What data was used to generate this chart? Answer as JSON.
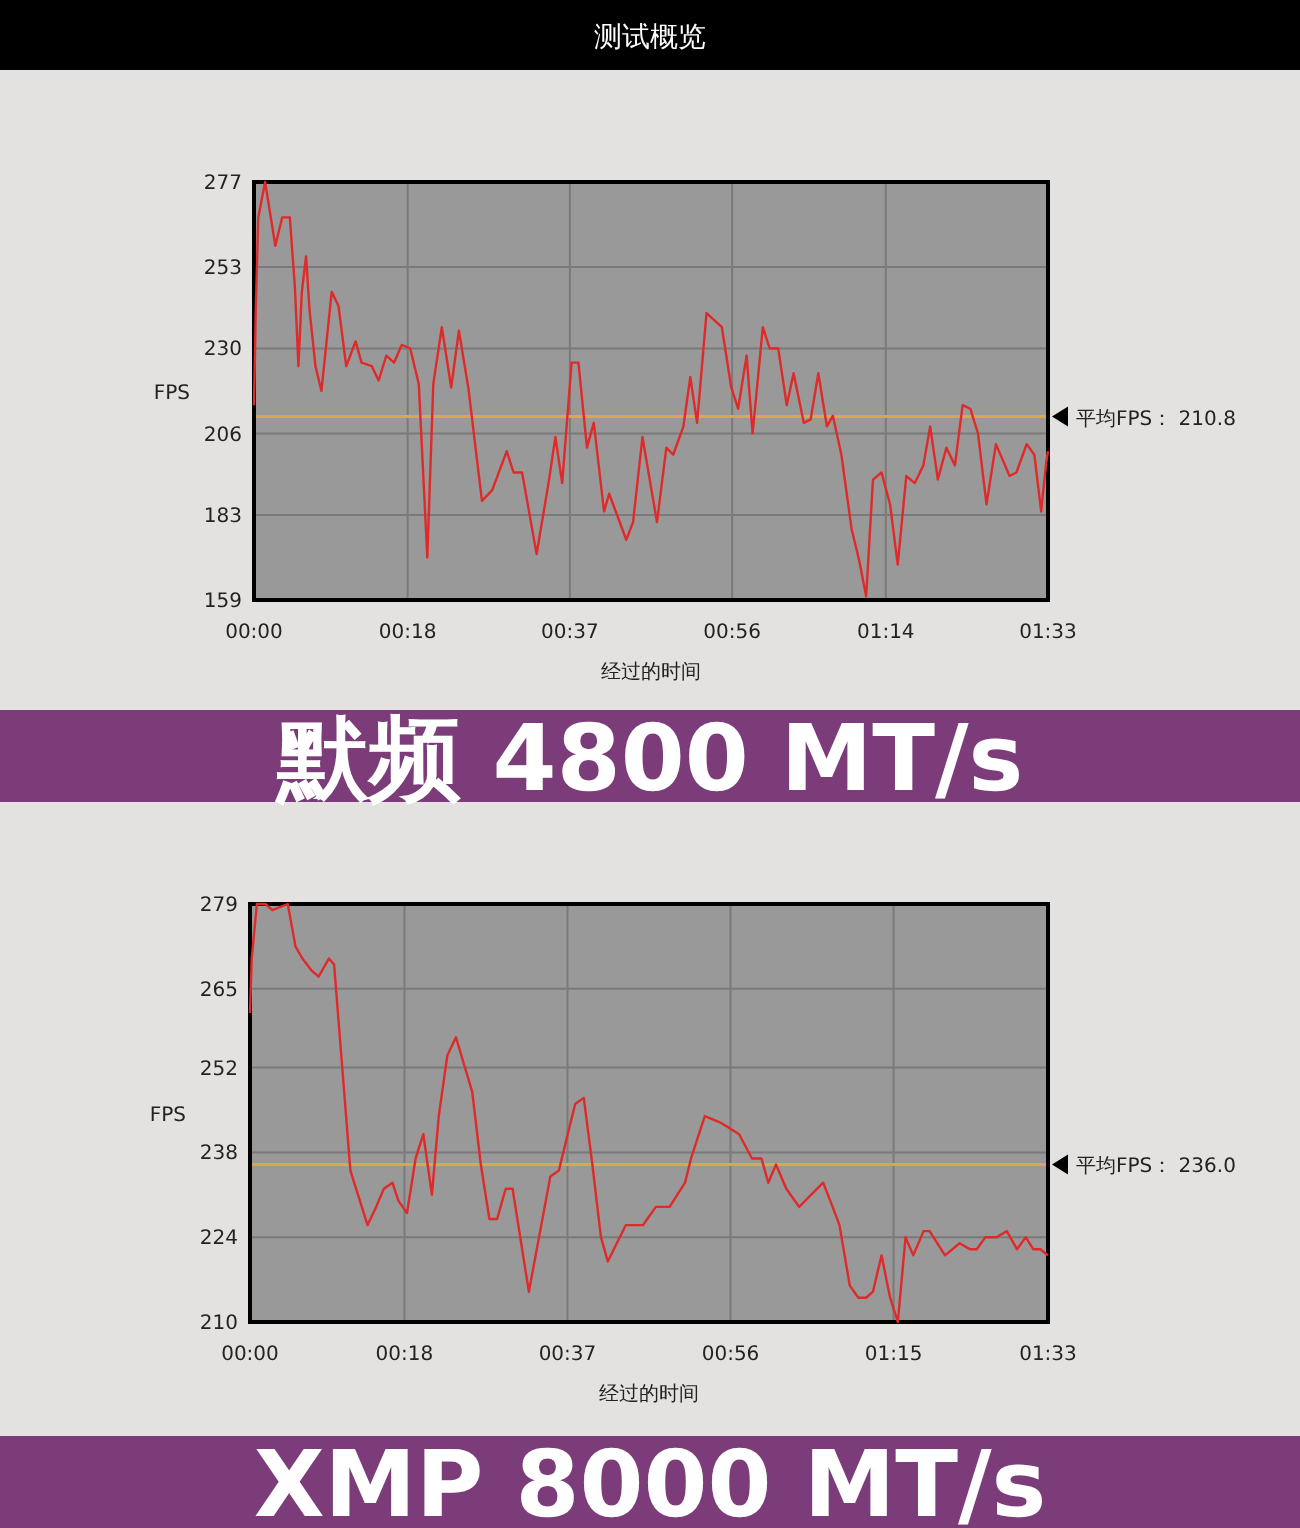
{
  "chart_data": [
    {
      "type": "line",
      "title": "默频 4800 MT/s",
      "annotations": [
        "测试概览"
      ],
      "xlabel": "经过的时间",
      "ylabel": "FPS",
      "xlim": [
        0,
        93
      ],
      "ylim": [
        159,
        277
      ],
      "xticks": [
        {
          "value": 0,
          "label": "00:00"
        },
        {
          "value": 18,
          "label": "00:18"
        },
        {
          "value": 37,
          "label": "00:37"
        },
        {
          "value": 56,
          "label": "00:56"
        },
        {
          "value": 74,
          "label": "01:14"
        },
        {
          "value": 93,
          "label": "01:33"
        }
      ],
      "yticks": [
        159,
        183,
        206,
        230,
        253,
        277
      ],
      "grid": true,
      "marker": "none",
      "line_style": "solid",
      "ref_lines": [
        {
          "axis": "y",
          "value": 210.8,
          "label": "平均FPS：  210.8",
          "color": "#d9a84a"
        }
      ],
      "series": [
        {
          "color": "#e02a2a",
          "x": [
            0,
            0.2,
            0.5,
            1.3,
            2.5,
            3.3,
            4.2,
            4.8,
            5.2,
            5.6,
            6.1,
            6.5,
            7.2,
            7.9,
            9.1,
            9.9,
            10.8,
            11.9,
            12.6,
            13.8,
            14.6,
            15.5,
            16.4,
            17.3,
            18.3,
            19.3,
            20.3,
            21,
            22,
            23.1,
            24,
            25.1,
            26.7,
            27.9,
            29.6,
            30.4,
            31.4,
            33.1,
            34.5,
            35.3,
            36.1,
            37.2,
            38,
            39,
            39.8,
            41,
            41.6,
            43.6,
            44.4,
            45.5,
            47.2,
            48.3,
            49.1,
            50.3,
            51.1,
            51.9,
            53,
            54.8,
            55.9,
            56.7,
            57.7,
            58.4,
            59.6,
            60.4,
            61.4,
            62.4,
            63.2,
            64.4,
            65.2,
            66.1,
            67.1,
            67.8,
            68.8,
            70,
            70.9,
            71.7,
            72.5,
            73.5,
            74.5,
            75.4,
            76.4,
            77.4,
            78.4,
            79.2,
            80.1,
            81.1,
            82.1,
            83,
            83.9,
            84.8,
            85.8,
            86.9,
            88.5,
            89.3,
            90.5,
            91.4,
            92.2,
            92.8,
            93
          ],
          "values": [
            214,
            240,
            267,
            277,
            259,
            267,
            267,
            247,
            225,
            246,
            256,
            241,
            225,
            218,
            246,
            242,
            225,
            232,
            226,
            225,
            221,
            228,
            226,
            231,
            230,
            220,
            171,
            220,
            236,
            219,
            235,
            219,
            187,
            190,
            201,
            195,
            195,
            172,
            192,
            205,
            192,
            226,
            226,
            202,
            209,
            184,
            189,
            176,
            181,
            205,
            181,
            202,
            200,
            208,
            222,
            209,
            240,
            236,
            219,
            213,
            228,
            206,
            236,
            230,
            230,
            214,
            223,
            209,
            210,
            223,
            208,
            211,
            200,
            179,
            170,
            160,
            193,
            195,
            186,
            169,
            194,
            192,
            197,
            208,
            193,
            202,
            197,
            214,
            213,
            206,
            186,
            203,
            194,
            195,
            203,
            200,
            184,
            198,
            201
          ]
        }
      ]
    },
    {
      "type": "line",
      "title": "XMP 8000 MT/s",
      "xlabel": "经过的时间",
      "ylabel": "FPS",
      "xlim": [
        0,
        93
      ],
      "ylim": [
        210,
        279
      ],
      "xticks": [
        {
          "value": 0,
          "label": "00:00"
        },
        {
          "value": 18,
          "label": "00:18"
        },
        {
          "value": 37,
          "label": "00:37"
        },
        {
          "value": 56,
          "label": "00:56"
        },
        {
          "value": 75,
          "label": "01:15"
        },
        {
          "value": 93,
          "label": "01:33"
        }
      ],
      "yticks": [
        210,
        224,
        238,
        252,
        265,
        279
      ],
      "grid": true,
      "marker": "none",
      "line_style": "solid",
      "ref_lines": [
        {
          "axis": "y",
          "value": 236.0,
          "label": "平均FPS：  236.0",
          "color": "#d9a84a"
        }
      ],
      "series": [
        {
          "color": "#e02a2a",
          "x": [
            0,
            0.2,
            0.8,
            1.8,
            2.6,
            4.4,
            5.3,
            6.1,
            7.2,
            8,
            9.2,
            9.8,
            11.7,
            13.7,
            14.7,
            15.6,
            16.6,
            17.3,
            18.3,
            19.3,
            20.2,
            21.2,
            22,
            23,
            24,
            25.9,
            26.9,
            27.9,
            28.8,
            29.8,
            30.6,
            32.5,
            35,
            36,
            37.2,
            37.9,
            38.9,
            39.9,
            40.9,
            41.7,
            43.8,
            45.8,
            46.3,
            47.3,
            48.9,
            50.7,
            51.4,
            53,
            54.7,
            55.9,
            57,
            58.5,
            59.6,
            60.4,
            61.3,
            62.5,
            64,
            66.8,
            67.9,
            68.7,
            69.9,
            70.9,
            71.8,
            72.6,
            73.6,
            74.6,
            75.5,
            76.4,
            77.3,
            78.5,
            79.2,
            81,
            82.7,
            83.9,
            84.7,
            85.7,
            87,
            88.2,
            89.4,
            90.4,
            91.3,
            92.1,
            93
          ],
          "values": [
            261,
            270,
            279,
            279,
            278,
            279,
            272,
            270,
            268,
            267,
            270,
            269,
            235,
            226,
            229,
            232,
            233,
            230,
            228,
            237,
            241,
            231,
            244,
            254,
            257,
            248,
            236,
            227,
            227,
            232,
            232,
            215,
            234,
            235,
            242,
            246,
            247,
            236,
            224,
            220,
            226,
            226,
            227,
            229,
            229,
            233,
            237,
            244,
            243,
            242,
            241,
            237,
            237,
            233,
            236,
            232,
            229,
            233,
            229,
            226,
            216,
            214,
            214,
            215,
            221,
            214,
            210,
            224,
            221,
            225,
            225,
            221,
            223,
            222,
            222,
            224,
            224,
            225,
            222,
            224,
            222,
            222,
            221
          ]
        }
      ]
    }
  ]
}
